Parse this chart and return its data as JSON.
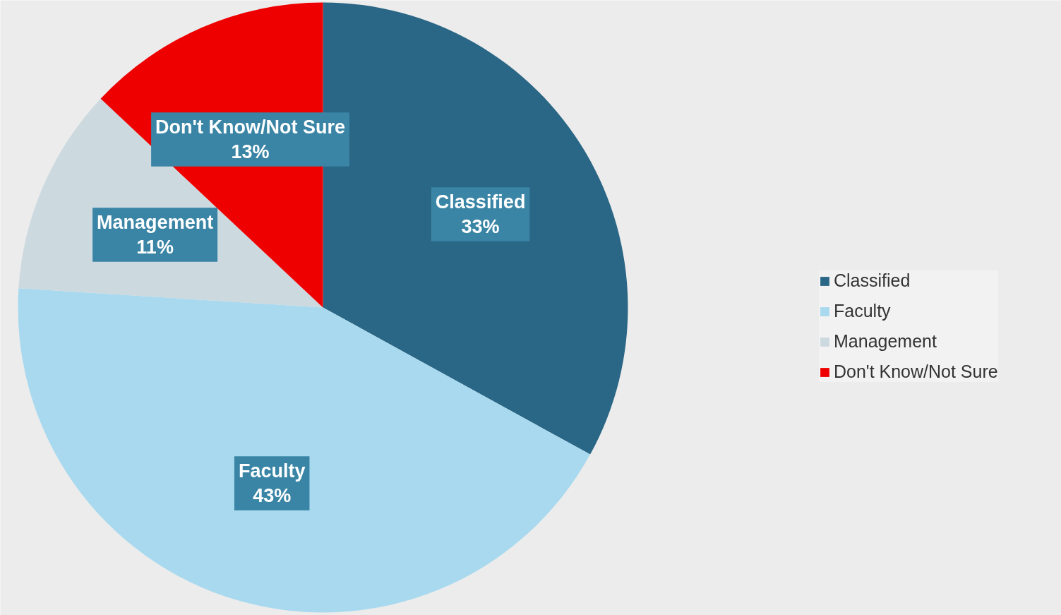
{
  "chart_data": {
    "type": "pie",
    "categories": [
      "Classified",
      "Faculty",
      "Management",
      "Don't Know/Not Sure"
    ],
    "values": [
      33,
      43,
      11,
      13
    ],
    "colors": [
      "#2a6685",
      "#a8d9ef",
      "#ccdae0",
      "#ee0000"
    ],
    "value_labels": [
      "33%",
      "43%",
      "11%",
      "13%"
    ],
    "legend": "right"
  }
}
